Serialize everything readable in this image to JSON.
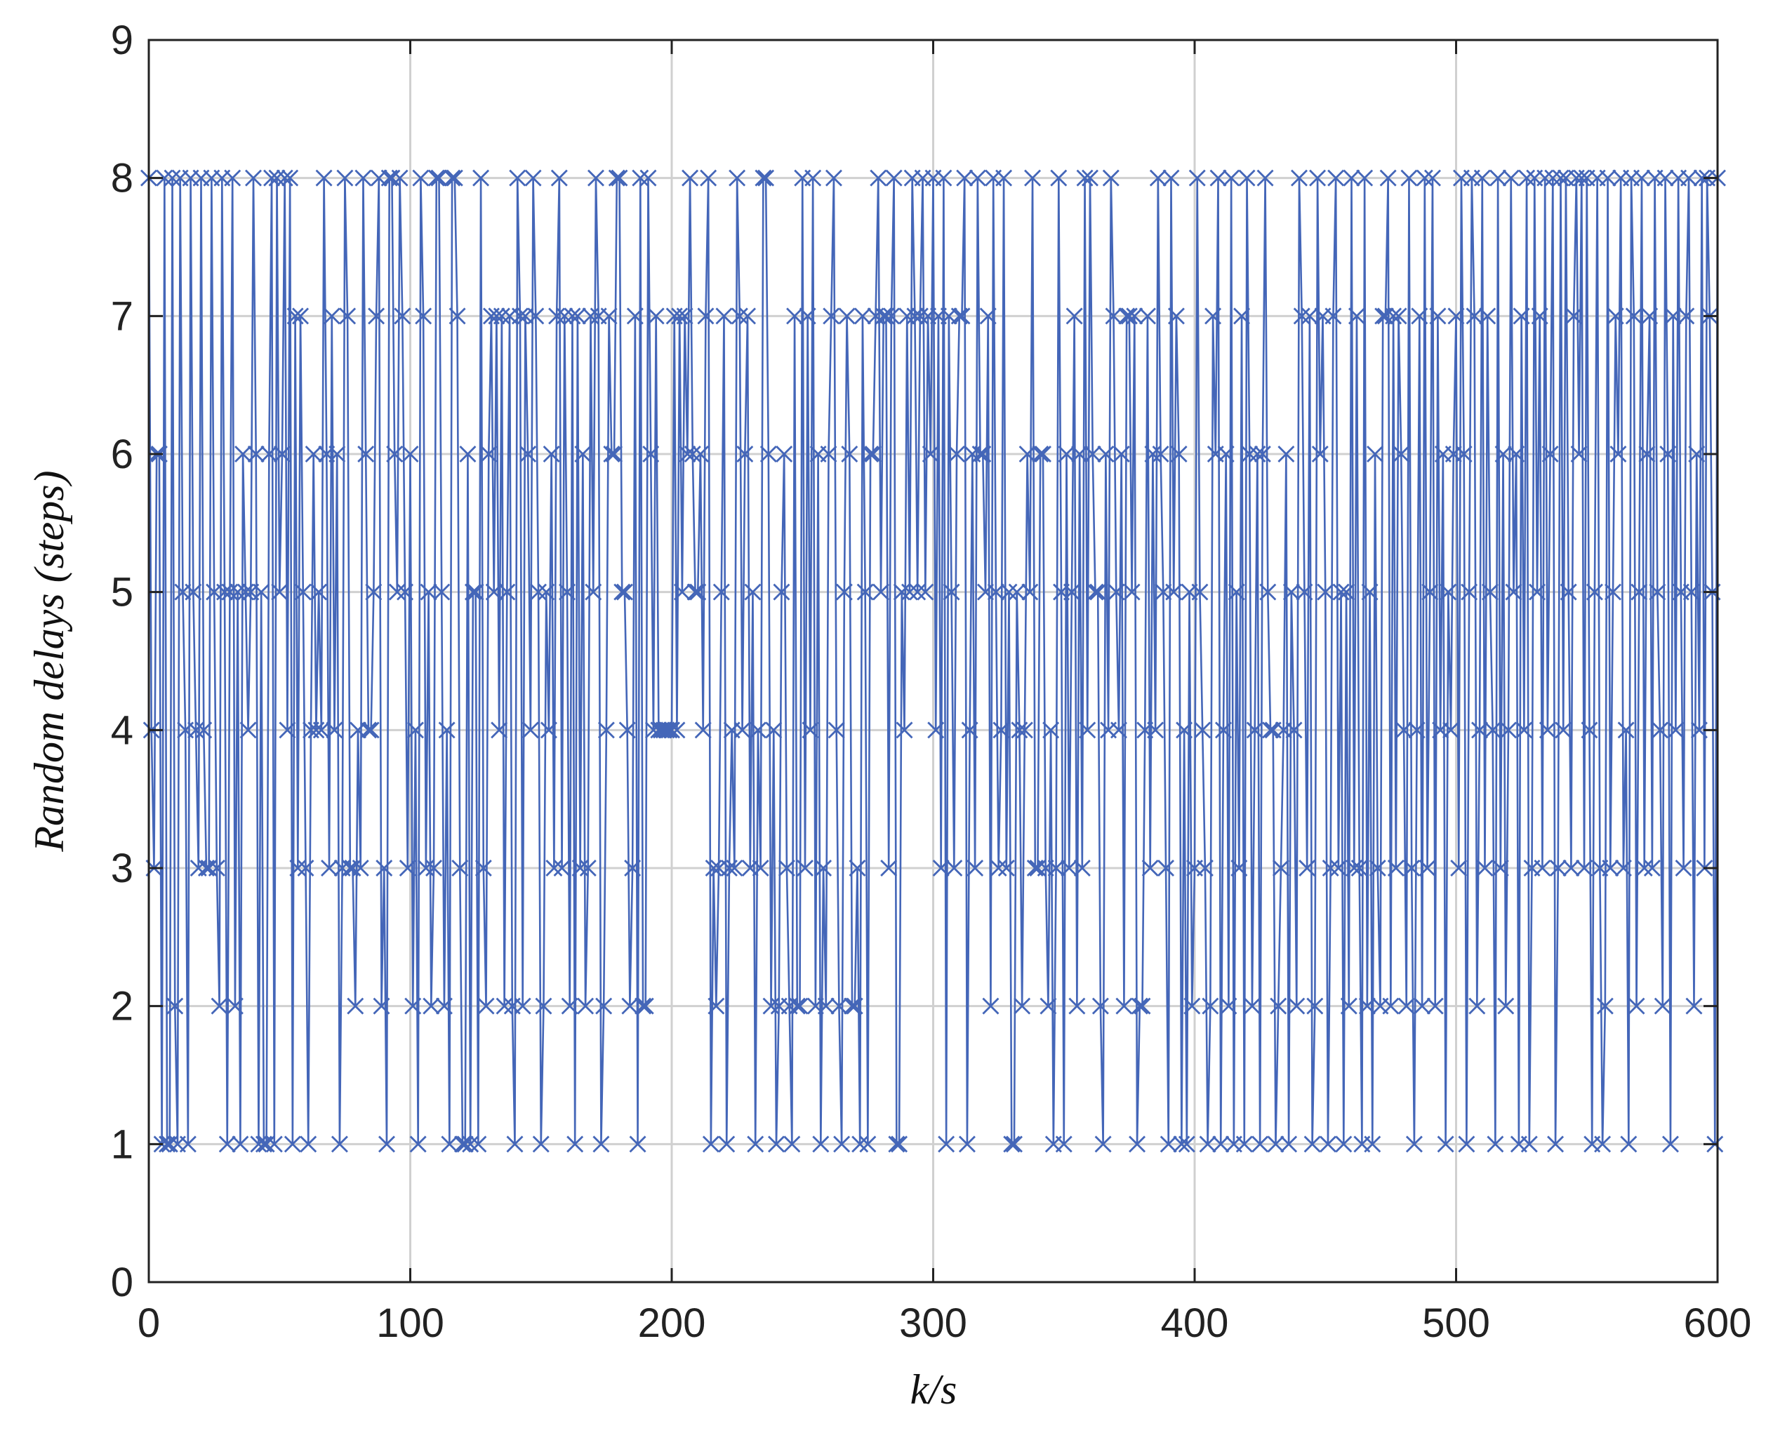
{
  "chart_data": {
    "type": "line",
    "marker": "x",
    "color": "#4466b8",
    "grid": true,
    "xlabel": "k/s",
    "ylabel": "Random delays (steps)",
    "xlim": [
      0,
      600
    ],
    "xticks": [
      0,
      100,
      200,
      300,
      400,
      500,
      600
    ],
    "ylim": [
      0,
      9
    ],
    "yticks": [
      0,
      1,
      2,
      3,
      4,
      5,
      6,
      7,
      8,
      9
    ],
    "x": [
      0,
      1,
      2,
      3,
      4,
      5,
      6,
      7,
      8,
      9,
      10,
      11,
      12,
      13,
      14,
      15,
      16,
      17,
      18,
      19,
      20,
      21,
      22,
      23,
      24,
      25,
      26,
      27,
      28,
      29,
      30,
      31,
      32,
      33,
      34,
      35,
      36,
      37,
      38,
      39,
      40,
      41,
      42,
      43,
      44,
      45,
      46,
      47,
      48,
      49,
      50,
      51,
      52,
      53,
      54,
      55,
      56,
      57,
      58,
      59,
      60,
      61,
      62,
      63,
      64,
      65,
      66,
      67,
      68,
      69,
      70,
      71,
      72,
      73,
      74,
      75,
      76,
      77,
      78,
      79,
      80,
      81,
      82,
      83,
      84,
      85,
      86,
      87,
      88,
      89,
      90,
      91,
      92,
      93,
      94,
      95,
      96,
      97,
      98,
      99,
      100,
      101,
      102,
      103,
      104,
      105,
      106,
      107,
      108,
      109,
      110,
      111,
      112,
      113,
      114,
      115,
      116,
      117,
      118,
      119,
      120,
      121,
      122,
      123,
      124,
      125,
      126,
      127,
      128,
      129,
      130,
      131,
      132,
      133,
      134,
      135,
      136,
      137,
      138,
      139,
      140,
      141,
      142,
      143,
      144,
      145,
      146,
      147,
      148,
      149,
      150,
      151,
      152,
      153,
      154,
      155,
      156,
      157,
      158,
      159,
      160,
      161,
      162,
      163,
      164,
      165,
      166,
      167,
      168,
      169,
      170,
      171,
      172,
      173,
      174,
      175,
      176,
      177,
      178,
      179,
      180,
      181,
      182,
      183,
      184,
      185,
      186,
      187,
      188,
      189,
      190,
      191,
      192,
      193,
      194,
      195,
      196,
      197,
      198,
      199,
      200,
      201,
      202,
      203,
      204,
      205,
      206,
      207,
      208,
      209,
      210,
      211,
      212,
      213,
      214,
      215,
      216,
      217,
      218,
      219,
      220,
      221,
      222,
      223,
      224,
      225,
      226,
      227,
      228,
      229,
      230,
      231,
      232,
      233,
      234,
      235,
      236,
      237,
      238,
      239,
      240,
      241,
      242,
      243,
      244,
      245,
      246,
      247,
      248,
      249,
      250,
      251,
      252,
      253,
      254,
      255,
      256,
      257,
      258,
      259,
      260,
      261,
      262,
      263,
      264,
      265,
      266,
      267,
      268,
      269,
      270,
      271,
      272,
      273,
      274,
      275,
      276,
      277,
      278,
      279,
      280,
      281,
      282,
      283,
      284,
      285,
      286,
      287,
      288,
      289,
      290,
      291,
      292,
      293,
      294,
      295,
      296,
      297,
      298,
      299,
      300,
      301,
      302,
      303,
      304,
      305,
      306,
      307,
      308,
      309,
      310,
      311,
      312,
      313,
      314,
      315,
      316,
      317,
      318,
      319,
      320,
      321,
      322,
      323,
      324,
      325,
      326,
      327,
      328,
      329,
      330,
      331,
      332,
      333,
      334,
      335,
      336,
      337,
      338,
      339,
      340,
      341,
      342,
      343,
      344,
      345,
      346,
      347,
      348,
      349,
      350,
      351,
      352,
      353,
      354,
      355,
      356,
      357,
      358,
      359,
      360,
      361,
      362,
      363,
      364,
      365,
      366,
      367,
      368,
      369,
      370,
      371,
      372,
      373,
      374,
      375,
      376,
      377,
      378,
      379,
      380,
      381,
      382,
      383,
      384,
      385,
      386,
      387,
      388,
      389,
      390,
      391,
      392,
      393,
      394,
      395,
      396,
      397,
      398,
      399,
      400,
      401,
      402,
      403,
      404,
      405,
      406,
      407,
      408,
      409,
      410,
      411,
      412,
      413,
      414,
      415,
      416,
      417,
      418,
      419,
      420,
      421,
      422,
      423,
      424,
      425,
      426,
      427,
      428,
      429,
      430,
      431,
      432,
      433,
      434,
      435,
      436,
      437,
      438,
      439,
      440,
      441,
      442,
      443,
      444,
      445,
      446,
      447,
      448,
      449,
      450,
      451,
      452,
      453,
      454,
      455,
      456,
      457,
      458,
      459,
      460,
      461,
      462,
      463,
      464,
      465,
      466,
      467,
      468,
      469,
      470,
      471,
      472,
      473,
      474,
      475,
      476,
      477,
      478,
      479,
      480,
      481,
      482,
      483,
      484,
      485,
      486,
      487,
      488,
      489,
      490,
      491,
      492,
      493,
      494,
      495,
      496,
      497,
      498,
      499,
      500,
      501,
      502,
      503,
      504,
      505,
      506,
      507,
      508,
      509,
      510,
      511,
      512,
      513,
      514,
      515,
      516,
      517,
      518,
      519,
      520,
      521,
      522,
      523,
      524,
      525,
      526,
      527,
      528,
      529,
      530,
      531,
      532,
      533,
      534,
      535,
      536,
      537,
      538,
      539,
      540,
      541,
      542,
      543,
      544,
      545,
      546,
      547,
      548,
      549,
      550,
      551,
      552,
      553,
      554,
      555,
      556,
      557,
      558,
      559,
      560,
      561,
      562,
      563,
      564,
      565,
      566,
      567,
      568,
      569,
      570,
      571,
      572,
      573,
      574,
      575,
      576,
      577,
      578,
      579,
      580,
      581,
      582,
      583,
      584,
      585,
      586,
      587,
      588,
      589,
      590,
      591,
      592,
      593,
      594,
      595,
      596,
      597,
      598,
      599,
      600
    ],
    "values": [
      8,
      4,
      3,
      6,
      6,
      1,
      8,
      1,
      1,
      8,
      2,
      1,
      8,
      5,
      4,
      1,
      8,
      5,
      4,
      3,
      8,
      4,
      3,
      3,
      8,
      5,
      3,
      2,
      8,
      5,
      1,
      5,
      8,
      2,
      5,
      1,
      6,
      5,
      4,
      5,
      8,
      6,
      1,
      5,
      1,
      1,
      6,
      8,
      1,
      8,
      5,
      6,
      8,
      4,
      8,
      1,
      7,
      3,
      7,
      5,
      3,
      1,
      4,
      6,
      4,
      5,
      4,
      8,
      6,
      3,
      7,
      4,
      6,
      1,
      3,
      8,
      7,
      3,
      3,
      2,
      4,
      3,
      8,
      6,
      4,
      4,
      5,
      7,
      8,
      2,
      3,
      1,
      8,
      8,
      6,
      5,
      8,
      7,
      5,
      3,
      6,
      2,
      4,
      1,
      8,
      7,
      3,
      5,
      2,
      3,
      8,
      8,
      5,
      2,
      4,
      1,
      8,
      8,
      7,
      3,
      1,
      1,
      6,
      1,
      5,
      5,
      1,
      8,
      3,
      2,
      6,
      7,
      5,
      7,
      4,
      7,
      2,
      5,
      7,
      2,
      1,
      8,
      7,
      2,
      7,
      6,
      4,
      8,
      7,
      5,
      1,
      2,
      5,
      4,
      6,
      3,
      7,
      8,
      3,
      7,
      5,
      2,
      7,
      1,
      7,
      3,
      6,
      2,
      3,
      7,
      5,
      8,
      7,
      1,
      2,
      4,
      7,
      6,
      6,
      8,
      8,
      5,
      5,
      4,
      2,
      3,
      7,
      1,
      8,
      2,
      2,
      8,
      6,
      4,
      7,
      4,
      4,
      4,
      4,
      4,
      4,
      7,
      4,
      7,
      5,
      7,
      6,
      8,
      6,
      5,
      5,
      6,
      4,
      7,
      8,
      1,
      3,
      2,
      3,
      5,
      7,
      1,
      3,
      4,
      3,
      8,
      7,
      4,
      6,
      7,
      3,
      5,
      1,
      4,
      3,
      8,
      8,
      6,
      2,
      4,
      1,
      2,
      5,
      6,
      3,
      2,
      1,
      7,
      2,
      2,
      8,
      3,
      7,
      4,
      8,
      2,
      6,
      1,
      3,
      2,
      6,
      7,
      8,
      4,
      2,
      1,
      5,
      7,
      6,
      2,
      2,
      3,
      1,
      7,
      5,
      1,
      6,
      6,
      7,
      8,
      5,
      7,
      7,
      3,
      7,
      8,
      1,
      1,
      5,
      4,
      7,
      5,
      8,
      7,
      5,
      7,
      8,
      5,
      7,
      6,
      8,
      4,
      7,
      3,
      8,
      1,
      7,
      5,
      3,
      6,
      7,
      7,
      8,
      1,
      4,
      6,
      3,
      8,
      6,
      6,
      5,
      7,
      2,
      8,
      5,
      3,
      4,
      8,
      3,
      5,
      1,
      1,
      5,
      4,
      2,
      4,
      6,
      5,
      8,
      3,
      3,
      6,
      6,
      3,
      2,
      4,
      1,
      3,
      8,
      5,
      1,
      6,
      3,
      5,
      7,
      2,
      6,
      3,
      8,
      4,
      8,
      6,
      5,
      5,
      2,
      1,
      6,
      4,
      8,
      7,
      5,
      4,
      6,
      2,
      7,
      7,
      5,
      7,
      1,
      2,
      2,
      4,
      7,
      3,
      6,
      4,
      8,
      6,
      5,
      3,
      1,
      8,
      5,
      7,
      6,
      1,
      4,
      1,
      5,
      2,
      3,
      8,
      5,
      4,
      3,
      1,
      2,
      7,
      6,
      8,
      1,
      4,
      6,
      2,
      8,
      1,
      5,
      3,
      7,
      1,
      8,
      6,
      2,
      4,
      6,
      1,
      6,
      8,
      5,
      4,
      4,
      1,
      2,
      3,
      4,
      6,
      1,
      5,
      4,
      2,
      8,
      7,
      5,
      3,
      7,
      1,
      2,
      8,
      6,
      7,
      5,
      1,
      3,
      7,
      8,
      3,
      5,
      1,
      5,
      2,
      8,
      3,
      7,
      3,
      1,
      8,
      2,
      5,
      1,
      6,
      3,
      2,
      7,
      7,
      8,
      2,
      7,
      3,
      7,
      6,
      4,
      2,
      8,
      3,
      1,
      4,
      7,
      2,
      8,
      3,
      5,
      8,
      2,
      7,
      4,
      6,
      1,
      5,
      4,
      6,
      7,
      3,
      8,
      6,
      1,
      5,
      8,
      7,
      2,
      4,
      8,
      3,
      7,
      5,
      4,
      1,
      8,
      3,
      6,
      2,
      4,
      8,
      5,
      6,
      1,
      7,
      4,
      8,
      1,
      3,
      8,
      5,
      7,
      3,
      8,
      4,
      6,
      8,
      1,
      3,
      8,
      4,
      8,
      5,
      3,
      7,
      8,
      6,
      8,
      3,
      8,
      4,
      1,
      5,
      8,
      3,
      1,
      2,
      8,
      3,
      5,
      7,
      6,
      8,
      3,
      4,
      1,
      8,
      7,
      2,
      5,
      8,
      3,
      6,
      7,
      3,
      8,
      5,
      4,
      2,
      8,
      6,
      1,
      7,
      4,
      8,
      5,
      3,
      7,
      8,
      5,
      2,
      6,
      4,
      8,
      3,
      8,
      7,
      5,
      1,
      8
    ]
  }
}
